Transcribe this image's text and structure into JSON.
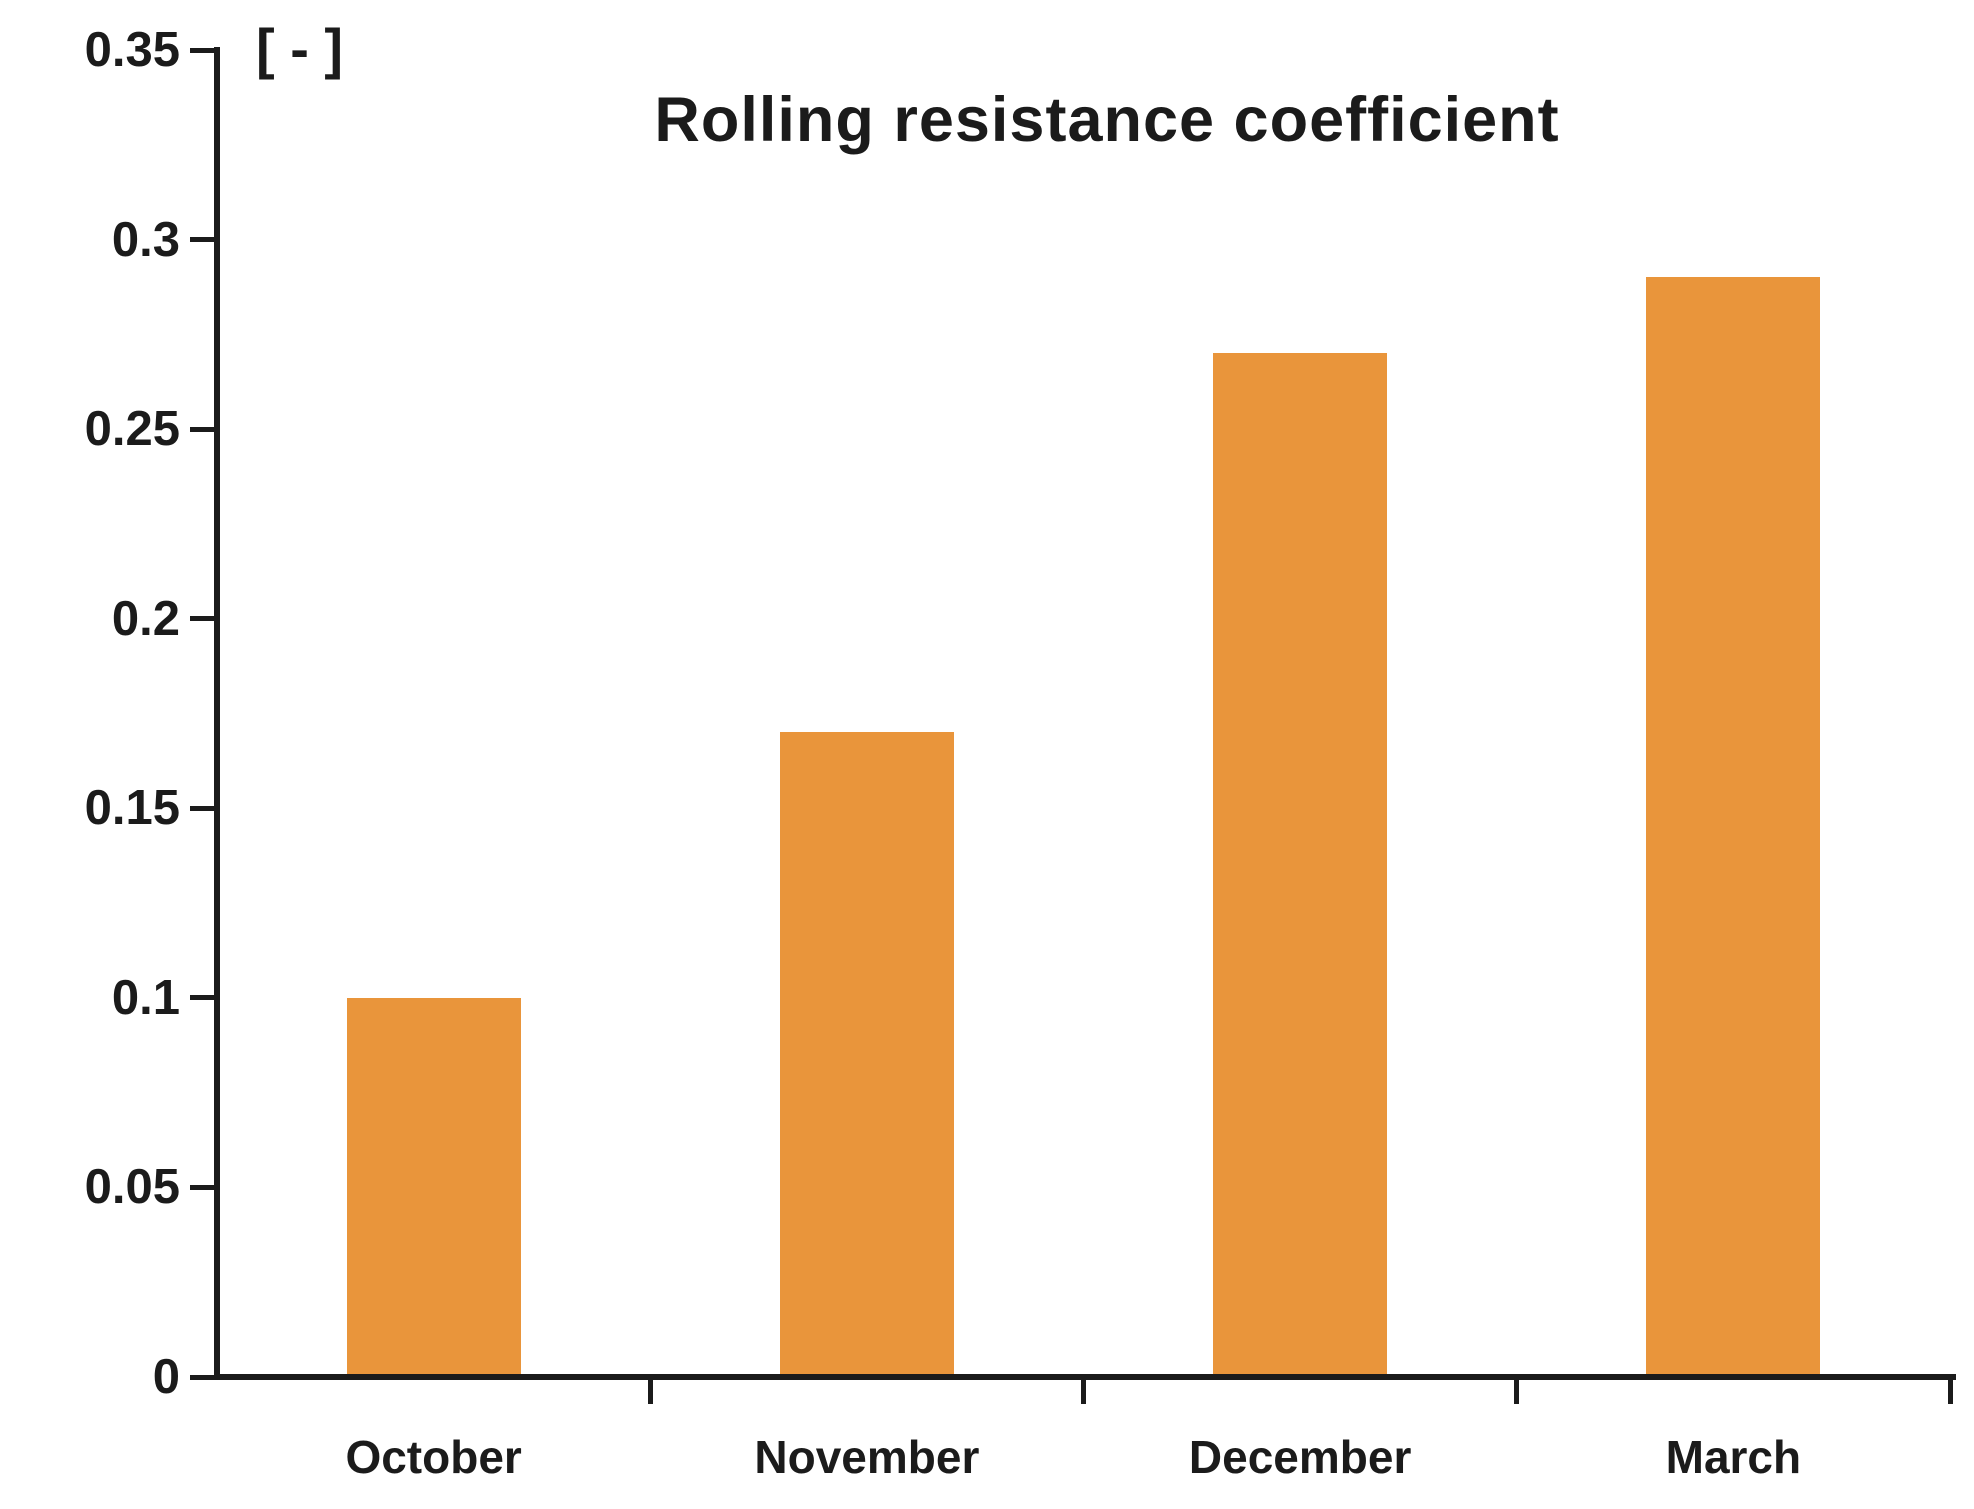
{
  "chart_data": {
    "type": "bar",
    "title": "Rolling resistance coefficient",
    "unit_label": "[ - ]",
    "categories": [
      "October",
      "November",
      "December",
      "March"
    ],
    "values": [
      0.1,
      0.17,
      0.27,
      0.29
    ],
    "xlabel": "",
    "ylabel": "",
    "ylim": [
      0,
      0.35
    ],
    "y_ticks": [
      0,
      0.05,
      0.1,
      0.15,
      0.2,
      0.25,
      0.3,
      0.35
    ],
    "y_tick_labels": [
      "0",
      "0.05",
      "0.1",
      "0.15",
      "0.2",
      "0.25",
      "0.3",
      "0.35"
    ],
    "grid": false,
    "legend_position": "none",
    "bar_color": "#E9953B",
    "axis_color": "#1b1b1b",
    "text_color": "#1b1b1b"
  }
}
